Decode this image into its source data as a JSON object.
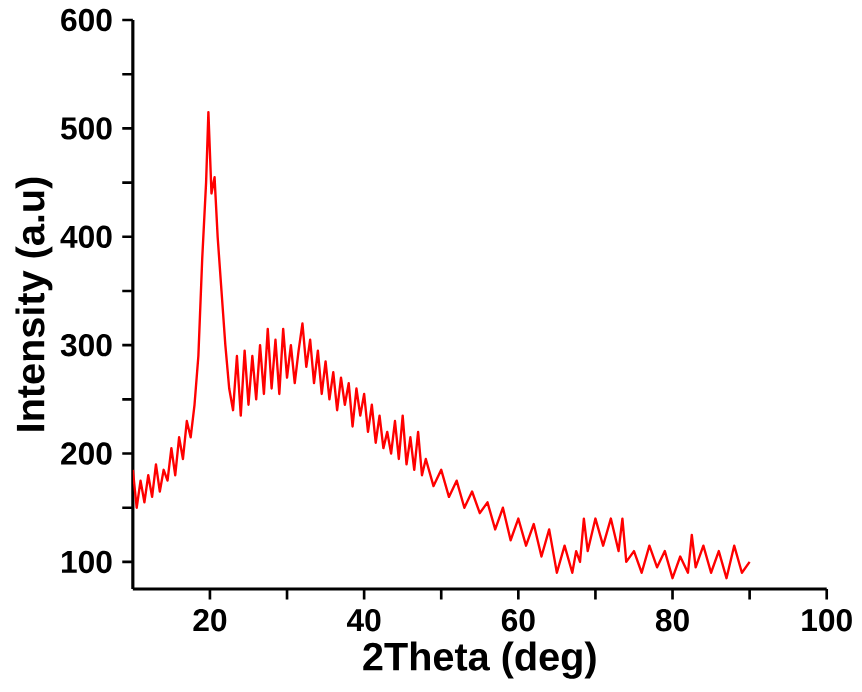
{
  "chart_data": {
    "type": "line",
    "xlabel": "2Theta (deg)",
    "ylabel": "Intensity (a.u)",
    "xlim": [
      10,
      100
    ],
    "ylim": [
      75,
      600
    ],
    "xticks": [
      20,
      {
        "value": 30,
        "label": null
      },
      40,
      {
        "value": 50,
        "label": null
      },
      60,
      {
        "value": 70,
        "label": null
      },
      80,
      {
        "value": 90,
        "label": null
      },
      100
    ],
    "yticks": [
      100,
      {
        "value": 150,
        "label": null
      },
      200,
      {
        "value": 250,
        "label": null
      },
      300,
      {
        "value": 350,
        "label": null
      },
      400,
      {
        "value": 450,
        "label": null
      },
      500,
      {
        "value": 550,
        "label": null
      },
      600
    ],
    "marker": "none",
    "line_style": "solid",
    "series": [
      {
        "color": "#ff0000",
        "x": [
          10,
          10.5,
          11,
          11.5,
          12,
          12.5,
          13,
          13.5,
          14,
          14.5,
          15,
          15.5,
          16,
          16.5,
          17,
          17.5,
          18,
          18.5,
          19,
          19.5,
          19.8,
          20.2,
          20.6,
          21,
          21.5,
          22,
          22.5,
          23,
          23.5,
          24,
          24.5,
          25,
          25.5,
          26,
          26.5,
          27,
          27.5,
          28,
          28.5,
          29,
          29.5,
          30,
          30.5,
          31,
          31.5,
          32,
          32.5,
          33,
          33.5,
          34,
          34.5,
          35,
          35.5,
          36,
          36.5,
          37,
          37.5,
          38,
          38.5,
          39,
          39.5,
          40,
          40.5,
          41,
          41.5,
          42,
          42.5,
          43,
          43.5,
          44,
          44.5,
          45,
          45.5,
          46,
          46.5,
          47,
          47.5,
          48,
          49,
          50,
          51,
          52,
          53,
          54,
          55,
          56,
          57,
          58,
          59,
          60,
          61,
          62,
          63,
          64,
          65,
          66,
          67,
          67.5,
          68,
          68.5,
          69,
          70,
          71,
          72,
          73,
          73.5,
          74,
          75,
          76,
          77,
          78,
          79,
          80,
          81,
          82,
          82.5,
          83,
          84,
          85,
          86,
          87,
          88,
          89,
          90
        ],
        "values": [
          185,
          150,
          175,
          155,
          180,
          160,
          190,
          165,
          185,
          175,
          205,
          180,
          215,
          195,
          230,
          215,
          245,
          290,
          380,
          450,
          515,
          440,
          455,
          400,
          350,
          300,
          260,
          240,
          290,
          235,
          295,
          245,
          290,
          250,
          300,
          255,
          315,
          260,
          305,
          255,
          315,
          270,
          300,
          265,
          295,
          320,
          280,
          305,
          265,
          295,
          255,
          285,
          250,
          275,
          240,
          270,
          245,
          265,
          225,
          260,
          235,
          255,
          220,
          245,
          210,
          235,
          205,
          220,
          200,
          230,
          195,
          235,
          190,
          215,
          185,
          220,
          180,
          195,
          170,
          185,
          160,
          175,
          150,
          165,
          145,
          155,
          130,
          150,
          120,
          140,
          115,
          135,
          105,
          130,
          90,
          115,
          90,
          110,
          100,
          140,
          110,
          140,
          115,
          140,
          110,
          140,
          100,
          110,
          90,
          115,
          95,
          110,
          85,
          105,
          90,
          125,
          95,
          115,
          90,
          110,
          85,
          115,
          90,
          100
        ]
      }
    ]
  }
}
